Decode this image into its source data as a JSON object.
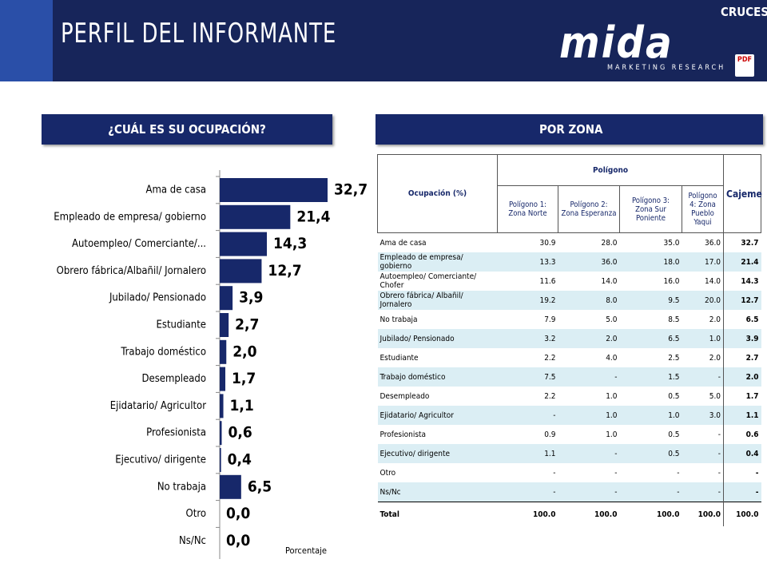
{
  "header": {
    "title": "PERFIL DEL INFORMANTE",
    "logo": "mida",
    "logo_sub": "MARKETING RESEARCH",
    "nav": "CRUCES",
    "pdf": "PDF"
  },
  "left_panel": {
    "title": "¿CUÁL ES SU OCUPACIÓN?"
  },
  "right_panel": {
    "title": "POR ZONA"
  },
  "chart_data": {
    "type": "hbar",
    "color": "#17286a",
    "categories": [
      "Ama de casa",
      "Empleado de empresa/ gobierno",
      "Autoempleo/ Comerciante/...",
      "Obrero fábrica/Albañil/ Jornalero",
      "Jubilado/ Pensionado",
      "Estudiante",
      "Trabajo doméstico",
      "Desempleado",
      "Ejidatario/ Agricultor",
      "Profesionista",
      "Ejecutivo/ dirigente",
      "No trabaja",
      "Otro",
      "Ns/Nc"
    ],
    "values": [
      32.7,
      21.4,
      14.3,
      12.7,
      3.9,
      2.7,
      2.0,
      1.7,
      1.1,
      0.6,
      0.4,
      6.5,
      0.0,
      0.0
    ],
    "value_labels": [
      "32,7",
      "21,4",
      "14,3",
      "12,7",
      "3,9",
      "2,7",
      "2,0",
      "1,7",
      "1,1",
      "0,6",
      "0,4",
      "6,5",
      "0,0",
      "0,0"
    ],
    "x_label": "Porcentaje"
  },
  "table": {
    "header": {
      "first": "Ocupación (%)",
      "group": "Polígono",
      "last": "Cajeme",
      "sub": [
        "Polígono 1: Zona Norte",
        "Polígono 2: Zona Esperanza",
        "Polígono 3: Zona Sur Poniente",
        "Polígono 4: Zona Pueblo Yaqui"
      ]
    },
    "rows": [
      [
        "Ama de casa",
        "30.9",
        "28.0",
        "35.0",
        "36.0",
        "32.7"
      ],
      [
        "Empleado de empresa/ gobierno",
        "13.3",
        "36.0",
        "18.0",
        "17.0",
        "21.4"
      ],
      [
        "Autoempleo/ Comerciante/ Chofer",
        "11.6",
        "14.0",
        "16.0",
        "14.0",
        "14.3"
      ],
      [
        "Obrero fábrica/ Albañil/ Jornalero",
        "19.2",
        "8.0",
        "9.5",
        "20.0",
        "12.7"
      ],
      [
        "No trabaja",
        "7.9",
        "5.0",
        "8.5",
        "2.0",
        "6.5"
      ],
      [
        "Jubilado/ Pensionado",
        "3.2",
        "2.0",
        "6.5",
        "1.0",
        "3.9"
      ],
      [
        "Estudiante",
        "2.2",
        "4.0",
        "2.5",
        "2.0",
        "2.7"
      ],
      [
        "Trabajo doméstico",
        "7.5",
        "-",
        "1.5",
        "-",
        "2.0"
      ],
      [
        "Desempleado",
        "2.2",
        "1.0",
        "0.5",
        "5.0",
        "1.7"
      ],
      [
        "Ejidatario/ Agricultor",
        "-",
        "1.0",
        "1.0",
        "3.0",
        "1.1"
      ],
      [
        "Profesionista",
        "0.9",
        "1.0",
        "0.5",
        "-",
        "0.6"
      ],
      [
        "Ejecutivo/ dirigente",
        "1.1",
        "-",
        "0.5",
        "-",
        "0.4"
      ],
      [
        "Otro",
        "-",
        "-",
        "-",
        "-",
        "-"
      ],
      [
        "Ns/Nc",
        "-",
        "-",
        "-",
        "-",
        "-"
      ],
      [
        "Total",
        "100.0",
        "100.0",
        "100.0",
        "100.0",
        "100.0"
      ]
    ]
  }
}
